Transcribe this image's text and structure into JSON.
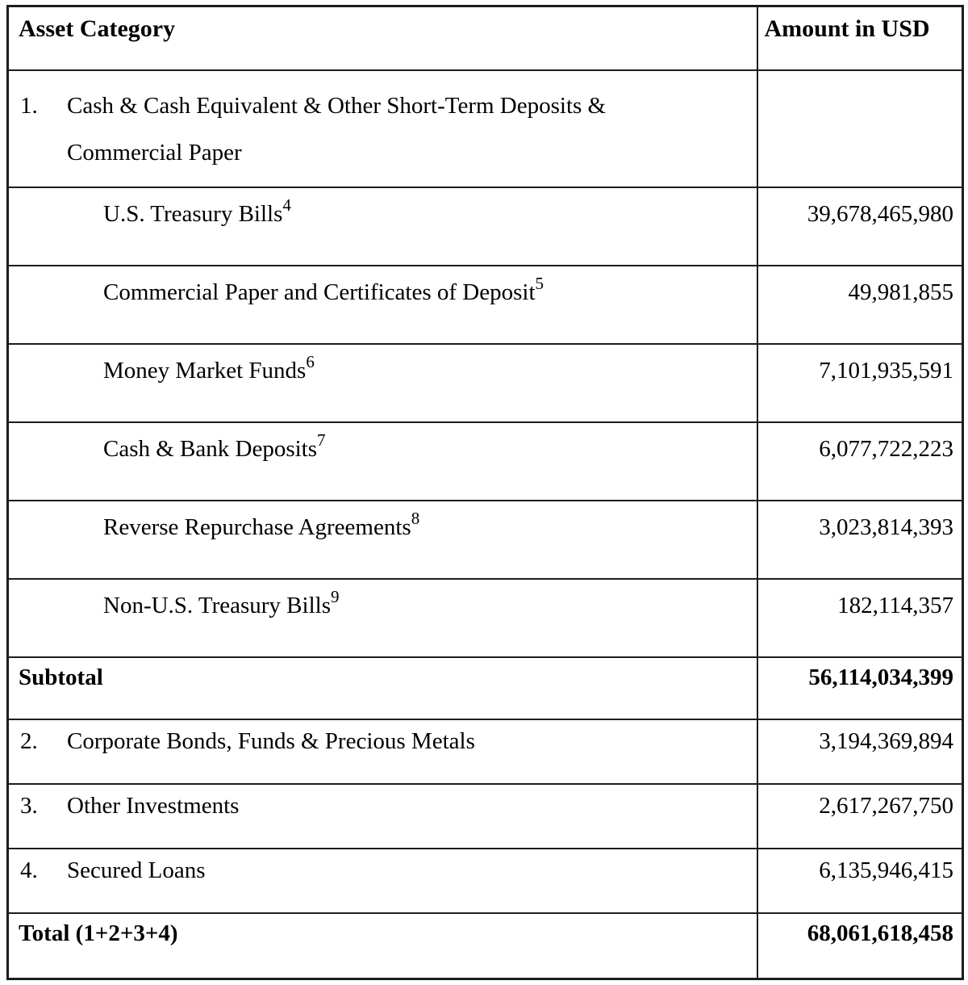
{
  "colors": {
    "text": "#000000",
    "border": "#1d1d1d",
    "background": "#ffffff"
  },
  "table": {
    "columns": [
      "Asset Category",
      "Amount in USD"
    ],
    "rows": [
      {
        "type": "item",
        "number": "1.",
        "label": "Cash & Cash Equivalent & Other Short-Term Deposits & Commercial Paper",
        "label_lines": [
          "Cash & Cash Equivalent & Other Short-Term Deposits &",
          "Commercial Paper"
        ],
        "amount": ""
      },
      {
        "type": "subitem",
        "label": "U.S. Treasury Bills",
        "footnote": "4",
        "amount": "39,678,465,980"
      },
      {
        "type": "subitem",
        "label": "Commercial Paper and Certificates of Deposit",
        "footnote": "5",
        "amount": "49,981,855"
      },
      {
        "type": "subitem",
        "label": "Money Market Funds",
        "footnote": "6",
        "amount": "7,101,935,591"
      },
      {
        "type": "subitem",
        "label": "Cash & Bank Deposits",
        "footnote": "7",
        "amount": "6,077,722,223"
      },
      {
        "type": "subitem",
        "label": "Reverse Repurchase Agreements",
        "footnote": "8",
        "amount": "3,023,814,393"
      },
      {
        "type": "subitem",
        "label": "Non-U.S. Treasury Bills",
        "footnote": "9",
        "amount": "182,114,357"
      },
      {
        "type": "subtotal",
        "label": "Subtotal",
        "amount": "56,114,034,399"
      },
      {
        "type": "item",
        "number": "2.",
        "label": "Corporate Bonds, Funds & Precious Metals",
        "amount": "3,194,369,894"
      },
      {
        "type": "item",
        "number": "3.",
        "label": "Other Investments",
        "amount": "2,617,267,750"
      },
      {
        "type": "item",
        "number": "4.",
        "label": "Secured Loans",
        "amount": "6,135,946,415"
      },
      {
        "type": "total",
        "label": "Total (1+2+3+4)",
        "amount": "68,061,618,458"
      }
    ]
  }
}
